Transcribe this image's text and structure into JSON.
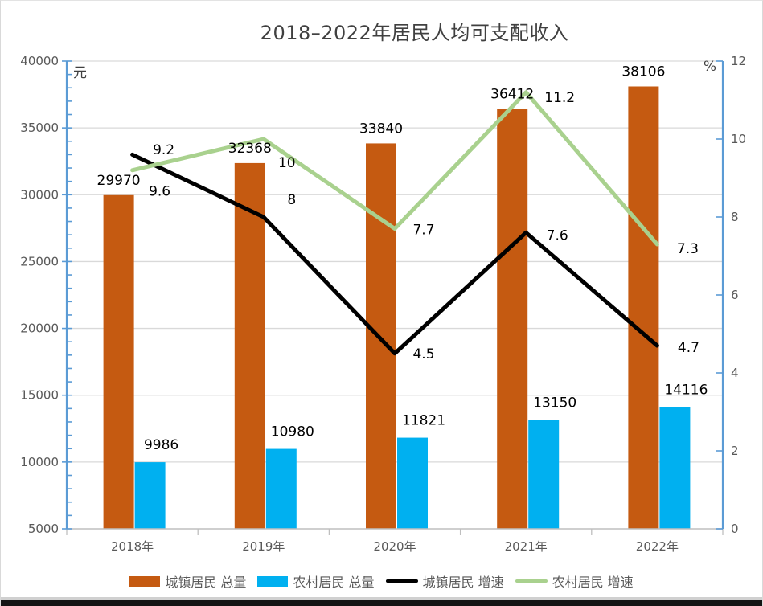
{
  "chart_data": {
    "type": "bar+line combo",
    "title": "2018–2022年居民人均可支配收入",
    "categories": [
      "2018年",
      "2019年",
      "2020年",
      "2021年",
      "2022年"
    ],
    "series": [
      {
        "name": "城镇居民 总量",
        "type": "bar",
        "axis": "left",
        "color": "#C55A11",
        "values": [
          29970,
          32368,
          33840,
          36412,
          38106
        ],
        "data_labels": [
          "29970",
          "32368",
          "33840",
          "36412",
          "38106"
        ]
      },
      {
        "name": "农村居民 总量",
        "type": "bar",
        "axis": "left",
        "color": "#00B0F0",
        "values": [
          9986,
          10980,
          11821,
          13150,
          14116
        ],
        "data_labels": [
          "9986",
          "10980",
          "11821",
          "13150",
          "14116"
        ]
      },
      {
        "name": "城镇居民 增速",
        "type": "line",
        "axis": "right",
        "color": "#000000",
        "values": [
          9.6,
          8,
          4.5,
          7.6,
          4.7
        ],
        "data_labels": [
          "9.6",
          "8",
          "4.5",
          "7.6",
          "4.7"
        ]
      },
      {
        "name": "农村居民 增速",
        "type": "line",
        "axis": "right",
        "color": "#A9D18E",
        "values": [
          9.2,
          10,
          7.7,
          11.2,
          7.3
        ],
        "data_labels": [
          "9.2",
          "10",
          "7.7",
          "11.2",
          "7.3"
        ]
      }
    ],
    "left_axis": {
      "unit": "元",
      "min": 5000,
      "max": 40000,
      "major_step": 5000,
      "minor_step": 1000,
      "ticks": [
        5000,
        10000,
        15000,
        20000,
        25000,
        30000,
        35000,
        40000
      ]
    },
    "right_axis": {
      "unit": "%",
      "min": 0,
      "max": 12,
      "major_step": 2,
      "ticks": [
        0,
        2,
        4,
        6,
        8,
        10,
        12
      ]
    },
    "legend_position": "bottom",
    "grid": true,
    "colors": {
      "axis_line": "#5B9BD5",
      "gridline": "#D9D9D9",
      "category_axis": "#BFBFBF",
      "tick_label": "#595959",
      "title": "#404040",
      "data_label": "#000000",
      "unit_label": "#404040"
    }
  }
}
